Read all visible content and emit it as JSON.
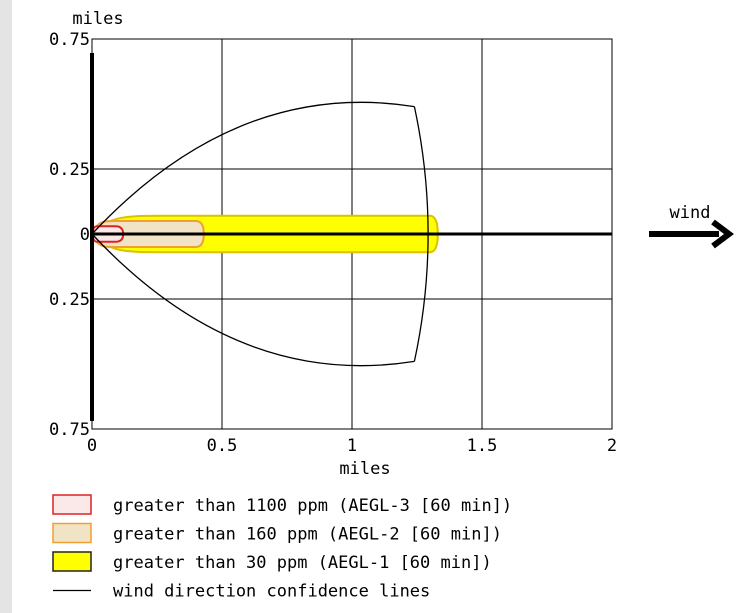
{
  "chart_data": {
    "type": "area",
    "title": "",
    "xlabel": "miles",
    "ylabel": "miles",
    "xlim": [
      0,
      2
    ],
    "ylim": [
      -0.75,
      0.75
    ],
    "y_axis_scale": "custom: 0 to 0.25 maps to one grid cell, 0.25 to 0.75 maps to one grid cell (each side)",
    "grid": true,
    "x_ticks": [
      {
        "value": 0,
        "label": "0"
      },
      {
        "value": 0.5,
        "label": "0.5"
      },
      {
        "value": 1,
        "label": "1"
      },
      {
        "value": 1.5,
        "label": "1.5"
      },
      {
        "value": 2,
        "label": "2"
      }
    ],
    "y_ticks": [
      {
        "value": 0.75,
        "label": "0.75"
      },
      {
        "value": 0.25,
        "label": "0.25"
      },
      {
        "value": 0,
        "label": "0"
      },
      {
        "value": -0.25,
        "label": "0.25"
      },
      {
        "value": -0.75,
        "label": "0.75"
      }
    ],
    "wind_label": "wind",
    "series": [
      {
        "name": "greater than 30 ppm (AEGL-1 [60 min])",
        "color_fill": "#ffff00",
        "color_stroke": "#d9c200",
        "length": 1.33,
        "half_width": 0.07
      },
      {
        "name": "greater than 160 ppm (AEGL-2 [60 min])",
        "color_fill": "#f1e3c6",
        "color_stroke": "#f0a030",
        "length": 0.43,
        "half_width": 0.05
      },
      {
        "name": "greater than 1100 ppm (AEGL-3 [60 min])",
        "color_fill": "#fbe8e8",
        "color_stroke": "#dd2222",
        "length": 0.12,
        "half_width": 0.03
      },
      {
        "name": "wind direction confidence lines",
        "color_stroke": "#000000",
        "cone_tip": [
          1.24,
          0.49
        ],
        "cone_end_x": 1.33
      }
    ]
  },
  "legend": [
    {
      "label": "greater than 1100 ppm (AEGL-3 [60 min])",
      "kind": "box",
      "fill": "#fbe8e8",
      "stroke": "#dd2222"
    },
    {
      "label": "greater than 160 ppm (AEGL-2 [60 min])",
      "kind": "box",
      "fill": "#f1e3c6",
      "stroke": "#f0a030"
    },
    {
      "label": "greater than 30 ppm (AEGL-1 [60 min])",
      "kind": "box",
      "fill": "#ffff00",
      "stroke": "#222222"
    },
    {
      "label": "wind direction confidence lines",
      "kind": "line",
      "stroke": "#000000"
    }
  ]
}
